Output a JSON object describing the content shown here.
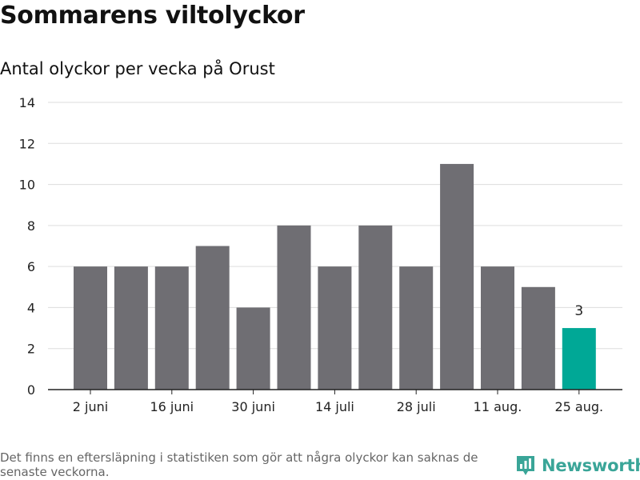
{
  "title": "Sommarens viltolyckor",
  "subtitle": "Antal olyckor per vecka på Orust",
  "footer_note": "Det finns en eftersläpning i statistiken som gör att några olyckor kan saknas de senaste veckorna.",
  "brand": {
    "name": "Newsworthy",
    "icon": "newsworthy-logo-icon",
    "color": "#3aa598"
  },
  "colors": {
    "bar": "#6f6e73",
    "highlight": "#00a896",
    "grid": "#dddddd",
    "axis": "#222222"
  },
  "chart_data": {
    "type": "bar",
    "title": "Sommarens viltolyckor",
    "subtitle": "Antal olyckor per vecka på Orust",
    "xlabel": "",
    "ylabel": "",
    "values": [
      6,
      6,
      6,
      7,
      4,
      8,
      6,
      8,
      6,
      11,
      6,
      5,
      3
    ],
    "x_tick_labels": [
      "2 juni",
      "16 juni",
      "30 juni",
      "14 juli",
      "28 juli",
      "11 aug.",
      "25 aug."
    ],
    "x_tick_every": 2,
    "ylim": [
      0,
      14
    ],
    "yticks": [
      0,
      2,
      4,
      6,
      8,
      10,
      12,
      14
    ],
    "grid": true,
    "highlight_index": 12,
    "data_labels": [
      {
        "index": 12,
        "text": "3"
      }
    ]
  }
}
